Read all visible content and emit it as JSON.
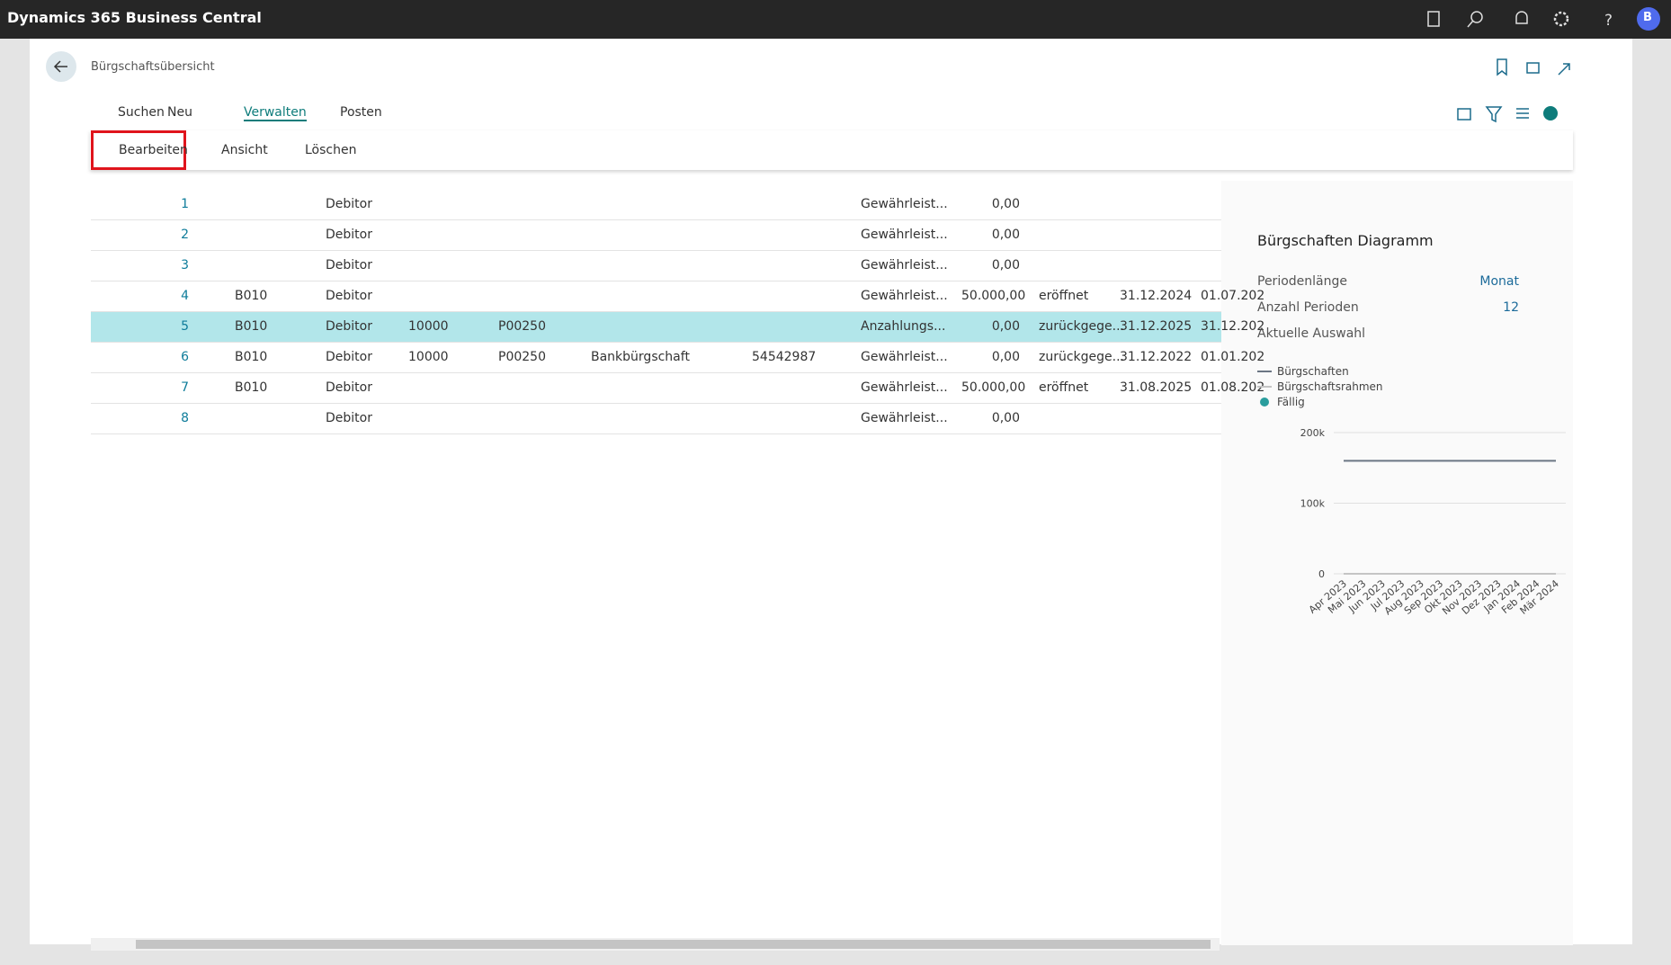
{
  "app": {
    "title": "Dynamics 365 Business Central",
    "avatar": "B"
  },
  "page": {
    "title": "Bürgschaftsübersicht"
  },
  "actions": {
    "tabs": [
      "Suchen",
      "Neu",
      "Verwalten",
      "Posten"
    ],
    "manage": [
      "Bearbeiten",
      "Ansicht",
      "Löschen"
    ]
  },
  "table": {
    "rows": [
      [
        "1",
        null,
        "Debitor",
        null,
        null,
        null,
        null,
        "Gewährleist...",
        "0,00",
        null,
        null,
        null
      ],
      [
        "2",
        null,
        "Debitor",
        null,
        null,
        null,
        null,
        "Gewährleist...",
        "0,00",
        null,
        null,
        null
      ],
      [
        "3",
        null,
        "Debitor",
        null,
        null,
        null,
        null,
        "Gewährleist...",
        "0,00",
        null,
        null,
        null
      ],
      [
        "4",
        "B010",
        "Debitor",
        null,
        null,
        null,
        null,
        "Gewährleist...",
        "50.000,00",
        "eröffnet",
        "31.12.2024",
        "01.07.202"
      ],
      [
        "5",
        "B010",
        "Debitor",
        "10000",
        "P00250",
        null,
        null,
        "Anzahlungs...",
        "0,00",
        "zurückgege...",
        "31.12.2025",
        "31.12.202"
      ],
      [
        "6",
        "B010",
        "Debitor",
        "10000",
        "P00250",
        "Bankbürgschaft",
        "54542987",
        "Gewährleist...",
        "0,00",
        "zurückgege...",
        "31.12.2022",
        "01.01.202"
      ],
      [
        "7",
        "B010",
        "Debitor",
        null,
        null,
        null,
        null,
        "Gewährleist...",
        "50.000,00",
        "eröffnet",
        "31.08.2025",
        "01.08.202"
      ],
      [
        "8",
        null,
        "Debitor",
        null,
        null,
        null,
        null,
        "Gewährleist...",
        "0,00",
        null,
        null,
        null
      ]
    ]
  },
  "factbox": {
    "title": "Bürgschaften Diagramm",
    "fields": [
      {
        "label": "Periodenlänge",
        "value": "Monat"
      },
      {
        "label": "Anzahl Perioden",
        "value": "12"
      },
      {
        "label": "Aktuelle Auswahl"
      }
    ],
    "chart": {
      "type": "line",
      "categories": [
        "Apr 2023",
        "Mai 2023",
        "Jun 2023",
        "Jul 2023",
        "Aug 2023",
        "Sep 2023",
        "Okt 2023",
        "Nov 2023",
        "Dez 2023",
        "Jan 2024",
        "Feb 2024",
        "Mär 2024"
      ],
      "series": [
        {
          "name": "Bürgschaften",
          "color": "#6b7684",
          "values": [
            160000,
            160000,
            160000,
            160000,
            160000,
            160000,
            160000,
            160000,
            160000,
            160000,
            160000,
            160000
          ]
        },
        {
          "name": "Bürgschaftsrahmen",
          "color": "#c4c4c4",
          "values": [
            0,
            0,
            0,
            0,
            0,
            0,
            0,
            0,
            0,
            0,
            0,
            0
          ]
        },
        {
          "name": "Fällig",
          "color": "#2a9d9d",
          "values": [
            null,
            null,
            null,
            null,
            null,
            null,
            null,
            null,
            null,
            null,
            null,
            null
          ]
        }
      ],
      "ylim": [
        0,
        200000
      ],
      "yticks": [
        0,
        {
          "value": 100000,
          "label": "100k"
        },
        {
          "value": 200000,
          "label": "200k"
        }
      ],
      "grid": true
    }
  }
}
